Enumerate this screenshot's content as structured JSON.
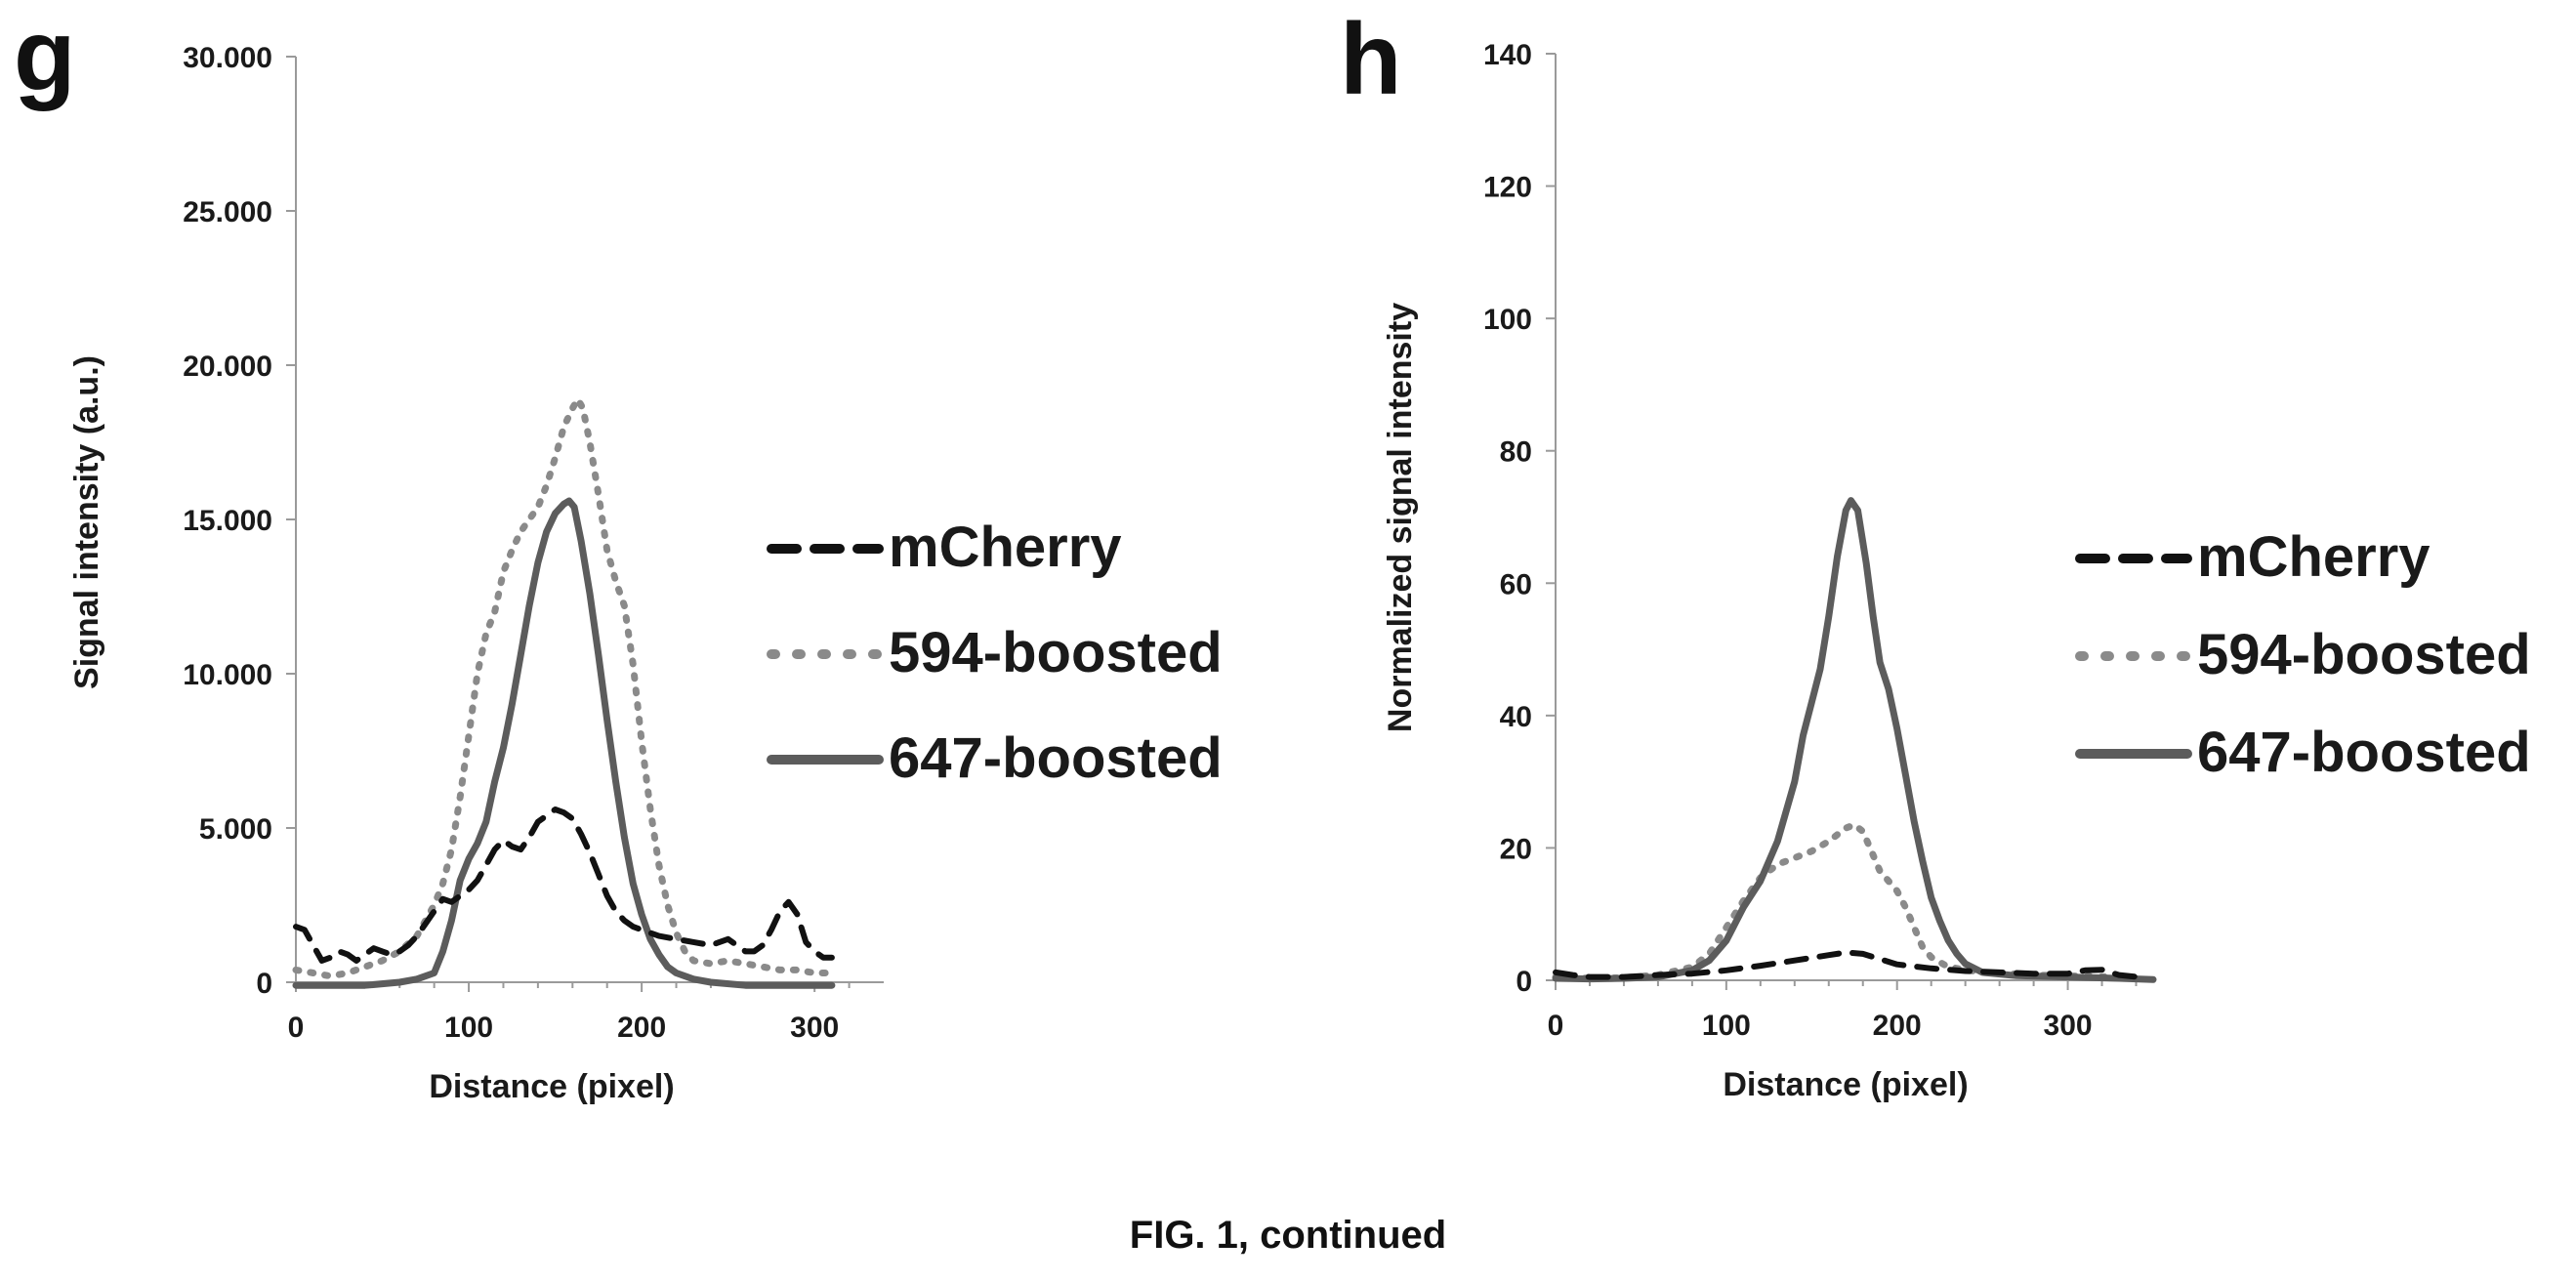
{
  "caption": "FIG. 1, continued",
  "chart_data": [
    {
      "panel": "g",
      "type": "line",
      "xlabel": "Distance (pixel)",
      "ylabel": "Signal intensity (a.u.)",
      "xlim": [
        0,
        340
      ],
      "ylim": [
        0,
        30000
      ],
      "xticks": [
        0,
        100,
        200,
        300
      ],
      "xtick_labels": [
        "0",
        "100",
        "200",
        "300"
      ],
      "yticks": [
        0,
        5000,
        10000,
        15000,
        20000,
        25000,
        30000
      ],
      "ytick_labels": [
        "0",
        "5.000",
        "10.000",
        "15.000",
        "20.000",
        "25.000",
        "30.000"
      ],
      "grid": false,
      "legend_position": "right",
      "series": [
        {
          "name": "mCherry",
          "style": "dashed",
          "color": "#111111",
          "points": [
            [
              0,
              1800
            ],
            [
              5,
              1700
            ],
            [
              10,
              1200
            ],
            [
              15,
              700
            ],
            [
              20,
              800
            ],
            [
              25,
              1000
            ],
            [
              30,
              900
            ],
            [
              35,
              700
            ],
            [
              40,
              900
            ],
            [
              45,
              1100
            ],
            [
              50,
              1000
            ],
            [
              55,
              900
            ],
            [
              60,
              1000
            ],
            [
              65,
              1200
            ],
            [
              70,
              1500
            ],
            [
              75,
              1900
            ],
            [
              80,
              2300
            ],
            [
              85,
              2700
            ],
            [
              90,
              2600
            ],
            [
              95,
              2800
            ],
            [
              100,
              3000
            ],
            [
              105,
              3300
            ],
            [
              110,
              3800
            ],
            [
              115,
              4300
            ],
            [
              120,
              4600
            ],
            [
              125,
              4400
            ],
            [
              130,
              4300
            ],
            [
              135,
              4700
            ],
            [
              140,
              5200
            ],
            [
              145,
              5400
            ],
            [
              150,
              5600
            ],
            [
              155,
              5500
            ],
            [
              160,
              5300
            ],
            [
              165,
              4800
            ],
            [
              170,
              4200
            ],
            [
              175,
              3500
            ],
            [
              180,
              2800
            ],
            [
              185,
              2300
            ],
            [
              190,
              2000
            ],
            [
              195,
              1800
            ],
            [
              200,
              1700
            ],
            [
              210,
              1500
            ],
            [
              220,
              1400
            ],
            [
              230,
              1300
            ],
            [
              240,
              1200
            ],
            [
              250,
              1400
            ],
            [
              255,
              1200
            ],
            [
              260,
              1000
            ],
            [
              265,
              1000
            ],
            [
              270,
              1200
            ],
            [
              275,
              1700
            ],
            [
              280,
              2300
            ],
            [
              285,
              2600
            ],
            [
              290,
              2200
            ],
            [
              295,
              1300
            ],
            [
              300,
              1000
            ],
            [
              305,
              800
            ],
            [
              310,
              800
            ]
          ]
        },
        {
          "name": "594-boosted",
          "style": "dotted",
          "color": "#8a8a8a",
          "points": [
            [
              0,
              400
            ],
            [
              10,
              300
            ],
            [
              20,
              200
            ],
            [
              30,
              300
            ],
            [
              40,
              500
            ],
            [
              50,
              700
            ],
            [
              60,
              1000
            ],
            [
              70,
              1500
            ],
            [
              80,
              2500
            ],
            [
              85,
              3200
            ],
            [
              90,
              4300
            ],
            [
              95,
              6000
            ],
            [
              100,
              8000
            ],
            [
              105,
              10000
            ],
            [
              110,
              11300
            ],
            [
              115,
              12000
            ],
            [
              120,
              13300
            ],
            [
              125,
              14000
            ],
            [
              130,
              14600
            ],
            [
              135,
              15000
            ],
            [
              140,
              15400
            ],
            [
              145,
              16100
            ],
            [
              150,
              17000
            ],
            [
              155,
              18000
            ],
            [
              160,
              18600
            ],
            [
              163,
              18900
            ],
            [
              166,
              18600
            ],
            [
              170,
              17500
            ],
            [
              175,
              15800
            ],
            [
              180,
              14000
            ],
            [
              185,
              13000
            ],
            [
              190,
              12200
            ],
            [
              195,
              10300
            ],
            [
              200,
              7800
            ],
            [
              205,
              5600
            ],
            [
              210,
              3800
            ],
            [
              215,
              2500
            ],
            [
              220,
              1600
            ],
            [
              225,
              1000
            ],
            [
              230,
              700
            ],
            [
              240,
              600
            ],
            [
              250,
              700
            ],
            [
              260,
              600
            ],
            [
              270,
              500
            ],
            [
              280,
              400
            ],
            [
              290,
              400
            ],
            [
              300,
              300
            ],
            [
              310,
              300
            ]
          ]
        },
        {
          "name": "647-boosted",
          "style": "solid",
          "color": "#5c5c5c",
          "points": [
            [
              0,
              -100
            ],
            [
              20,
              -100
            ],
            [
              40,
              -100
            ],
            [
              60,
              0
            ],
            [
              70,
              100
            ],
            [
              80,
              300
            ],
            [
              85,
              1000
            ],
            [
              90,
              2000
            ],
            [
              95,
              3300
            ],
            [
              100,
              4000
            ],
            [
              105,
              4500
            ],
            [
              110,
              5200
            ],
            [
              115,
              6500
            ],
            [
              120,
              7600
            ],
            [
              125,
              9000
            ],
            [
              130,
              10600
            ],
            [
              135,
              12200
            ],
            [
              140,
              13600
            ],
            [
              145,
              14600
            ],
            [
              150,
              15200
            ],
            [
              155,
              15500
            ],
            [
              158,
              15600
            ],
            [
              161,
              15400
            ],
            [
              165,
              14300
            ],
            [
              170,
              12600
            ],
            [
              175,
              10600
            ],
            [
              180,
              8500
            ],
            [
              185,
              6500
            ],
            [
              190,
              4700
            ],
            [
              195,
              3200
            ],
            [
              200,
              2200
            ],
            [
              205,
              1400
            ],
            [
              210,
              900
            ],
            [
              215,
              500
            ],
            [
              220,
              300
            ],
            [
              230,
              100
            ],
            [
              240,
              0
            ],
            [
              260,
              -100
            ],
            [
              280,
              -100
            ],
            [
              300,
              -100
            ],
            [
              310,
              -100
            ]
          ]
        }
      ]
    },
    {
      "panel": "h",
      "type": "line",
      "xlabel": "Distance (pixel)",
      "ylabel": "Normalized signal intensity",
      "xlim": [
        0,
        350
      ],
      "ylim": [
        0,
        140
      ],
      "xticks": [
        0,
        100,
        200,
        300
      ],
      "xtick_labels": [
        "0",
        "100",
        "200",
        "300"
      ],
      "yticks": [
        0,
        20,
        40,
        60,
        80,
        100,
        120,
        140
      ],
      "ytick_labels": [
        "0",
        "20",
        "40",
        "60",
        "80",
        "100",
        "120",
        "140"
      ],
      "grid": false,
      "legend_position": "right",
      "series": [
        {
          "name": "mCherry",
          "style": "dashed",
          "color": "#111111",
          "points": [
            [
              0,
              1.2
            ],
            [
              10,
              0.8
            ],
            [
              20,
              0.5
            ],
            [
              40,
              0.5
            ],
            [
              60,
              0.8
            ],
            [
              80,
              1.0
            ],
            [
              100,
              1.5
            ],
            [
              120,
              2.2
            ],
            [
              140,
              3.0
            ],
            [
              160,
              3.8
            ],
            [
              170,
              4.2
            ],
            [
              180,
              4.0
            ],
            [
              190,
              3.2
            ],
            [
              200,
              2.4
            ],
            [
              220,
              1.8
            ],
            [
              240,
              1.4
            ],
            [
              260,
              1.2
            ],
            [
              280,
              1.0
            ],
            [
              300,
              1.0
            ],
            [
              310,
              1.5
            ],
            [
              320,
              1.6
            ],
            [
              330,
              0.8
            ],
            [
              345,
              0.4
            ]
          ]
        },
        {
          "name": "594-boosted",
          "style": "dotted",
          "color": "#8a8a8a",
          "points": [
            [
              0,
              0.5
            ],
            [
              20,
              0.3
            ],
            [
              40,
              0.4
            ],
            [
              60,
              0.8
            ],
            [
              80,
              2.0
            ],
            [
              90,
              4.0
            ],
            [
              100,
              8.0
            ],
            [
              110,
              12.0
            ],
            [
              120,
              15.5
            ],
            [
              130,
              17.5
            ],
            [
              140,
              18.5
            ],
            [
              150,
              19.5
            ],
            [
              160,
              21.0
            ],
            [
              170,
              23.0
            ],
            [
              175,
              23.5
            ],
            [
              180,
              22.5
            ],
            [
              185,
              19.5
            ],
            [
              190,
              16.5
            ],
            [
              195,
              15.0
            ],
            [
              200,
              13.5
            ],
            [
              205,
              11.0
            ],
            [
              210,
              8.0
            ],
            [
              215,
              5.0
            ],
            [
              220,
              3.5
            ],
            [
              230,
              2.0
            ],
            [
              250,
              1.2
            ],
            [
              280,
              0.8
            ],
            [
              310,
              0.6
            ],
            [
              340,
              0.4
            ]
          ]
        },
        {
          "name": "647-boosted",
          "style": "solid",
          "color": "#5c5c5c",
          "points": [
            [
              0,
              0.3
            ],
            [
              20,
              0.2
            ],
            [
              40,
              0.3
            ],
            [
              60,
              0.5
            ],
            [
              80,
              1.5
            ],
            [
              90,
              3.0
            ],
            [
              100,
              6.0
            ],
            [
              110,
              11.0
            ],
            [
              120,
              15.0
            ],
            [
              130,
              21.0
            ],
            [
              140,
              30.0
            ],
            [
              145,
              37.0
            ],
            [
              150,
              42.0
            ],
            [
              155,
              47.0
            ],
            [
              160,
              55.0
            ],
            [
              165,
              64.0
            ],
            [
              170,
              71.0
            ],
            [
              173,
              72.5
            ],
            [
              177,
              71.0
            ],
            [
              182,
              63.0
            ],
            [
              186,
              55.0
            ],
            [
              190,
              48.0
            ],
            [
              195,
              44.0
            ],
            [
              200,
              38.0
            ],
            [
              205,
              31.0
            ],
            [
              210,
              24.0
            ],
            [
              215,
              18.0
            ],
            [
              220,
              12.5
            ],
            [
              225,
              9.0
            ],
            [
              230,
              6.0
            ],
            [
              235,
              4.0
            ],
            [
              240,
              2.5
            ],
            [
              250,
              1.2
            ],
            [
              270,
              0.7
            ],
            [
              300,
              0.5
            ],
            [
              330,
              0.3
            ],
            [
              350,
              0.1
            ]
          ]
        }
      ]
    }
  ]
}
